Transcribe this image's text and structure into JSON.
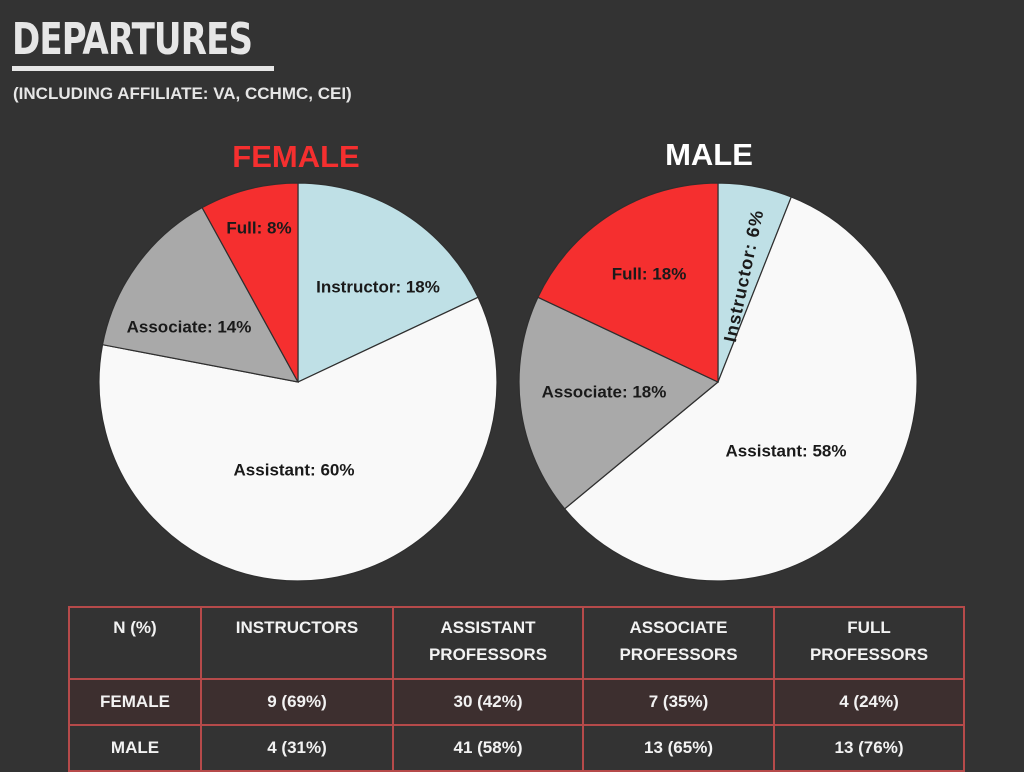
{
  "title": "DEPARTURES",
  "subtitle": "(INCLUDING AFFILIATE: VA, CCHMC, CEI)",
  "colors": {
    "instructor": "#bfe0e6",
    "assistant": "#f9f9f9",
    "associate": "#a9a9a9",
    "full": "#f52f2f",
    "female_heading": "#f52f2f",
    "male_heading": "#ffffff"
  },
  "chart_data": [
    {
      "type": "pie",
      "title": "FEMALE",
      "slices": [
        {
          "name": "Instructor",
          "value": 18,
          "label": "Instructor: 18%"
        },
        {
          "name": "Assistant",
          "value": 60,
          "label": "Assistant: 60%"
        },
        {
          "name": "Associate",
          "value": 14,
          "label": "Associate: 14%"
        },
        {
          "name": "Full",
          "value": 8,
          "label": "Full: 8%"
        }
      ]
    },
    {
      "type": "pie",
      "title": "MALE",
      "slices": [
        {
          "name": "Instructor",
          "value": 6,
          "label": "Instructor: 6%"
        },
        {
          "name": "Assistant",
          "value": 58,
          "label": "Assistant: 58%"
        },
        {
          "name": "Associate",
          "value": 18,
          "label": "Associate: 18%"
        },
        {
          "name": "Full",
          "value": 18,
          "label": "Full: 18%"
        }
      ]
    }
  ],
  "table": {
    "headers": [
      "N (%)",
      "INSTRUCTORS",
      "ASSISTANT\nPROFESSORS",
      "ASSOCIATE\nPROFESSORS",
      "FULL\nPROFESSORS"
    ],
    "rows": [
      {
        "label": "FEMALE",
        "cells": [
          "9 (69%)",
          "30 (42%)",
          "7 (35%)",
          "4 (24%)"
        ]
      },
      {
        "label": "MALE",
        "cells": [
          "4 (31%)",
          "41 (58%)",
          "13 (65%)",
          "13 (76%)"
        ]
      }
    ]
  }
}
